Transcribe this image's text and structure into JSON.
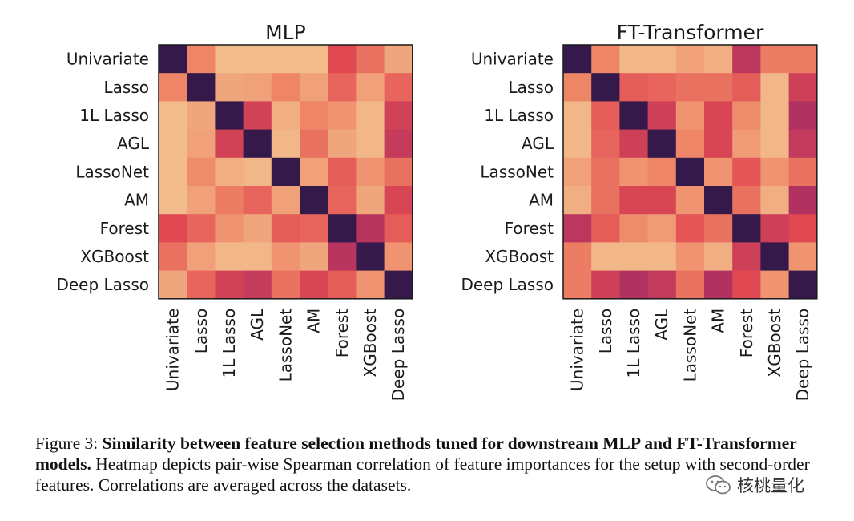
{
  "figure": {
    "caption_label": "Figure 3:",
    "caption_bold": "Similarity between feature selection methods tuned for downstream MLP and FT-Transformer models.",
    "caption_text": "Heatmap depicts pair-wise Spearman correlation of feature importances for the setup with second-order features. Correlations are averaged across the datasets.",
    "watermark": "核桃量化"
  },
  "colors": {
    "outline": "#1a1a1a",
    "text": "#1a1a1a"
  },
  "chart_data": [
    {
      "type": "heatmap",
      "title": "MLP",
      "rows": [
        "Univariate",
        "Lasso",
        "1L Lasso",
        "AGL",
        "LassoNet",
        "AM",
        "Forest",
        "XGBoost",
        "Deep Lasso"
      ],
      "cols": [
        "Univariate",
        "Lasso",
        "1L Lasso",
        "AGL",
        "LassoNet",
        "AM",
        "Forest",
        "XGBoost",
        "Deep Lasso"
      ],
      "colormap": "rocket",
      "vmin": 0,
      "vmax": 1,
      "values": [
        [
          1.0,
          0.4,
          0.2,
          0.2,
          0.2,
          0.2,
          0.55,
          0.45,
          0.28
        ],
        [
          0.4,
          1.0,
          0.28,
          0.3,
          0.4,
          0.3,
          0.48,
          0.3,
          0.48
        ],
        [
          0.2,
          0.28,
          1.0,
          0.6,
          0.25,
          0.4,
          0.35,
          0.22,
          0.6
        ],
        [
          0.2,
          0.3,
          0.6,
          1.0,
          0.22,
          0.45,
          0.28,
          0.22,
          0.65
        ],
        [
          0.2,
          0.38,
          0.25,
          0.22,
          1.0,
          0.3,
          0.5,
          0.35,
          0.45
        ],
        [
          0.2,
          0.3,
          0.42,
          0.48,
          0.3,
          1.0,
          0.48,
          0.28,
          0.58
        ],
        [
          0.55,
          0.48,
          0.35,
          0.28,
          0.5,
          0.48,
          1.0,
          0.7,
          0.5
        ],
        [
          0.45,
          0.3,
          0.22,
          0.22,
          0.35,
          0.28,
          0.7,
          1.0,
          0.35
        ],
        [
          0.28,
          0.48,
          0.6,
          0.65,
          0.45,
          0.58,
          0.5,
          0.35,
          1.0
        ]
      ]
    },
    {
      "type": "heatmap",
      "title": "FT-Transformer",
      "rows": [
        "Univariate",
        "Lasso",
        "1L Lasso",
        "AGL",
        "LassoNet",
        "AM",
        "Forest",
        "XGBoost",
        "Deep Lasso"
      ],
      "cols": [
        "Univariate",
        "Lasso",
        "1L Lasso",
        "AGL",
        "LassoNet",
        "AM",
        "Forest",
        "XGBoost",
        "Deep Lasso"
      ],
      "colormap": "rocket",
      "vmin": 0,
      "vmax": 1,
      "values": [
        [
          1.0,
          0.4,
          0.22,
          0.22,
          0.3,
          0.25,
          0.68,
          0.42,
          0.42
        ],
        [
          0.4,
          1.0,
          0.5,
          0.48,
          0.45,
          0.45,
          0.5,
          0.22,
          0.62
        ],
        [
          0.22,
          0.5,
          1.0,
          0.62,
          0.35,
          0.58,
          0.38,
          0.22,
          0.72
        ],
        [
          0.22,
          0.48,
          0.62,
          1.0,
          0.4,
          0.58,
          0.32,
          0.22,
          0.66
        ],
        [
          0.3,
          0.45,
          0.35,
          0.4,
          1.0,
          0.35,
          0.52,
          0.35,
          0.45
        ],
        [
          0.25,
          0.45,
          0.58,
          0.58,
          0.35,
          1.0,
          0.45,
          0.25,
          0.72
        ],
        [
          0.68,
          0.5,
          0.38,
          0.32,
          0.52,
          0.45,
          1.0,
          0.62,
          0.55
        ],
        [
          0.42,
          0.22,
          0.22,
          0.22,
          0.35,
          0.25,
          0.62,
          1.0,
          0.35
        ],
        [
          0.42,
          0.62,
          0.72,
          0.66,
          0.45,
          0.72,
          0.55,
          0.35,
          1.0
        ]
      ]
    }
  ]
}
